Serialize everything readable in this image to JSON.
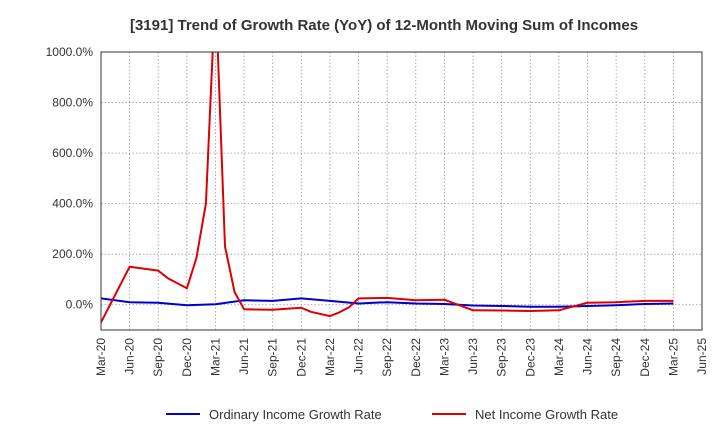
{
  "chart_data": {
    "type": "line",
    "title": "[3191]  Trend of Growth Rate (YoY) of 12-Month Moving Sum of Incomes",
    "xlabel": "",
    "ylabel": "",
    "ylim": [
      -100,
      1000
    ],
    "y_ticks": [
      0,
      200,
      400,
      600,
      800,
      1000
    ],
    "y_tick_labels": [
      "0.0%",
      "200.0%",
      "400.0%",
      "600.0%",
      "800.0%",
      "1000.0%"
    ],
    "x_tick_labels": [
      "Mar-20",
      "Jun-20",
      "Sep-20",
      "Dec-20",
      "Mar-21",
      "Jun-21",
      "Sep-21",
      "Dec-21",
      "Mar-22",
      "Jun-22",
      "Sep-22",
      "Dec-22",
      "Mar-23",
      "Jun-23",
      "Sep-23",
      "Dec-23",
      "Mar-24",
      "Jun-24",
      "Sep-24",
      "Dec-24",
      "Mar-25",
      "Jun-25"
    ],
    "x_unit": "month",
    "x_start": "2020-03",
    "grid": true,
    "legend_position": "bottom",
    "series": [
      {
        "name": "Ordinary Income Growth Rate",
        "color": "#0000cc",
        "points": [
          [
            "2020-03",
            25
          ],
          [
            "2020-06",
            10
          ],
          [
            "2020-09",
            8
          ],
          [
            "2020-12",
            -2
          ],
          [
            "2021-03",
            2
          ],
          [
            "2021-06",
            18
          ],
          [
            "2021-09",
            15
          ],
          [
            "2021-12",
            25
          ],
          [
            "2022-03",
            15
          ],
          [
            "2022-06",
            5
          ],
          [
            "2022-09",
            10
          ],
          [
            "2022-12",
            5
          ],
          [
            "2023-03",
            3
          ],
          [
            "2023-06",
            -3
          ],
          [
            "2023-09",
            -5
          ],
          [
            "2023-12",
            -8
          ],
          [
            "2024-03",
            -8
          ],
          [
            "2024-06",
            -5
          ],
          [
            "2024-09",
            -2
          ],
          [
            "2024-12",
            3
          ],
          [
            "2025-03",
            5
          ]
        ]
      },
      {
        "name": "Net Income Growth Rate",
        "color": "#dd0000",
        "points": [
          [
            "2020-03",
            -70
          ],
          [
            "2020-06",
            150
          ],
          [
            "2020-09",
            135
          ],
          [
            "2020-10",
            105
          ],
          [
            "2020-12",
            65
          ],
          [
            "2021-01",
            185
          ],
          [
            "2021-02",
            400
          ],
          [
            "2021-03",
            1250
          ],
          [
            "2021-04",
            230
          ],
          [
            "2021-05",
            50
          ],
          [
            "2021-06",
            -18
          ],
          [
            "2021-09",
            -20
          ],
          [
            "2021-12",
            -12
          ],
          [
            "2022-01",
            -28
          ],
          [
            "2022-03",
            -45
          ],
          [
            "2022-04",
            -30
          ],
          [
            "2022-05",
            -10
          ],
          [
            "2022-06",
            25
          ],
          [
            "2022-09",
            27
          ],
          [
            "2022-12",
            18
          ],
          [
            "2023-03",
            20
          ],
          [
            "2023-06",
            -22
          ],
          [
            "2023-09",
            -23
          ],
          [
            "2023-12",
            -25
          ],
          [
            "2024-03",
            -22
          ],
          [
            "2024-06",
            8
          ],
          [
            "2024-09",
            10
          ],
          [
            "2024-12",
            15
          ],
          [
            "2025-03",
            15
          ]
        ]
      }
    ]
  }
}
